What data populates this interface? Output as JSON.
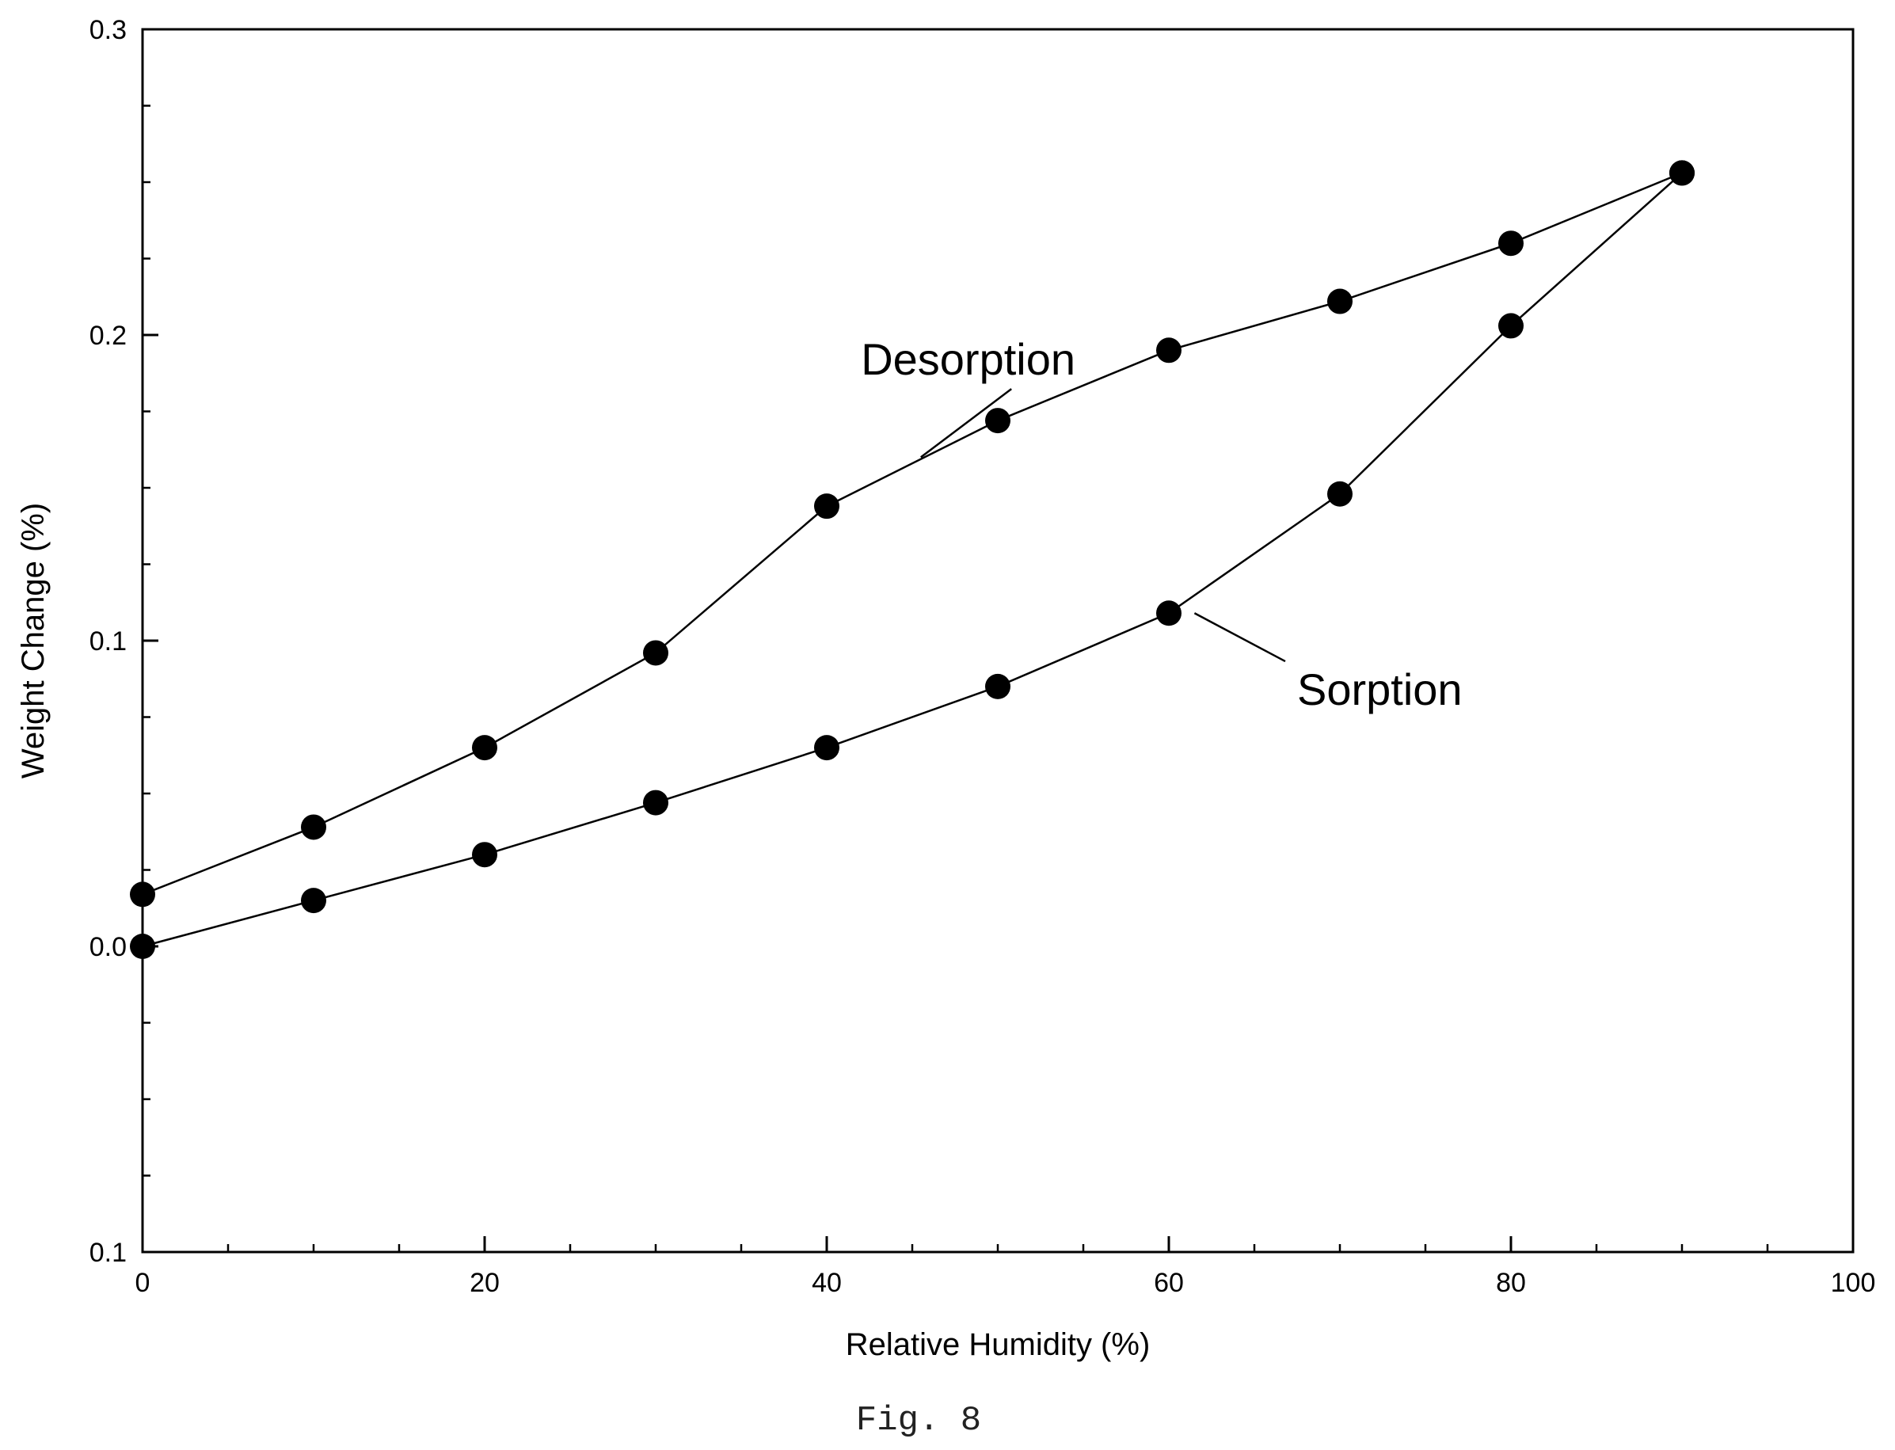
{
  "chart_data": {
    "type": "line",
    "xlabel": "Relative Humidity (%)",
    "ylabel": "Weight Change (%)",
    "caption": "Fig. 8",
    "xlim": [
      0,
      100
    ],
    "ylim": [
      -0.1,
      0.3
    ],
    "x_ticks": [
      0,
      20,
      40,
      60,
      80,
      100
    ],
    "x_tick_labels": [
      "0",
      "20",
      "40",
      "60",
      "80",
      "100"
    ],
    "x_minor_step": 5,
    "y_ticks": [
      -0.1,
      0.0,
      0.1,
      0.2,
      0.3
    ],
    "y_tick_labels": [
      "0.1",
      "0.0",
      "0.1",
      "0.2",
      "0.3"
    ],
    "y_minor_step": 0.025,
    "grid": false,
    "marker": "filled-circle",
    "line_color": "#000000",
    "series": [
      {
        "label": "Desorption",
        "x": [
          0,
          10,
          20,
          30,
          40,
          50,
          60,
          70,
          80,
          90
        ],
        "y": [
          0.017,
          0.039,
          0.065,
          0.096,
          0.144,
          0.172,
          0.195,
          0.211,
          0.23,
          0.253
        ]
      },
      {
        "label": "Sorption",
        "x": [
          0,
          10,
          20,
          30,
          40,
          50,
          60,
          70,
          80,
          90
        ],
        "y": [
          0.0,
          0.015,
          0.03,
          0.047,
          0.065,
          0.085,
          0.109,
          0.148,
          0.203,
          0.253
        ]
      }
    ],
    "annotations": [
      {
        "text": "Desorption",
        "series": 0,
        "points_to": [
          45.5,
          0.16
        ],
        "text_at": [
          42,
          0.187
        ]
      },
      {
        "text": "Sorption",
        "series": 1,
        "points_to": [
          61.5,
          0.109
        ],
        "text_at": [
          67.5,
          0.079
        ]
      }
    ]
  }
}
